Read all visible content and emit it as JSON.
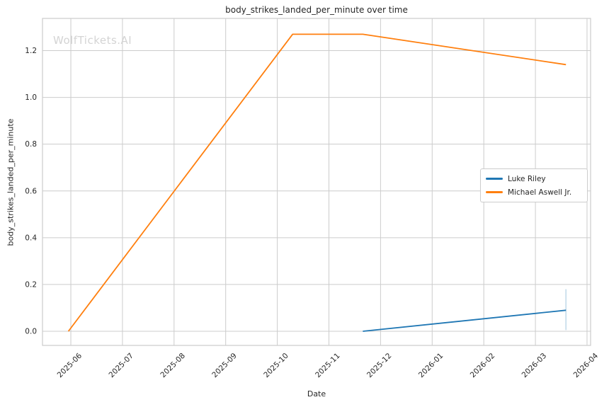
{
  "figure": {
    "watermark": "WolfTickets.AI"
  },
  "chart_data": {
    "type": "line",
    "title": "body_strikes_landed_per_minute over time",
    "xlabel": "Date",
    "ylabel": "body_strikes_landed_per_minute",
    "grid": true,
    "legend_position": "center right",
    "x_tick_labels": [
      "2025-06",
      "2025-07",
      "2025-08",
      "2025-09",
      "2025-10",
      "2025-11",
      "2025-12",
      "2026-01",
      "2026-02",
      "2026-03",
      "2026-04"
    ],
    "y_ticks": [
      0.0,
      0.2,
      0.4,
      0.6,
      0.8,
      1.0,
      1.2
    ],
    "y_tick_labels": [
      "0.0",
      "0.2",
      "0.4",
      "0.6",
      "0.8",
      "1.0",
      "1.2"
    ],
    "xlim_month_index": [
      -0.549,
      10.069
    ],
    "ylim": [
      -0.0605,
      1.3377
    ],
    "series": [
      {
        "name": "Luke Riley",
        "color": "#1f77b4",
        "points": [
          {
            "date": "2025-11-21",
            "value": 0.0
          },
          {
            "date": "2026-03-19",
            "value": 0.09
          }
        ],
        "error_bar_last": {
          "low": 0.005,
          "high": 0.18
        }
      },
      {
        "name": "Michael Aswell Jr.",
        "color": "#ff7f0e",
        "points": [
          {
            "date": "2025-05-30",
            "value": 0.0
          },
          {
            "date": "2025-10-10",
            "value": 1.27
          },
          {
            "date": "2025-11-21",
            "value": 1.27
          },
          {
            "date": "2026-03-19",
            "value": 1.14
          }
        ]
      }
    ]
  }
}
